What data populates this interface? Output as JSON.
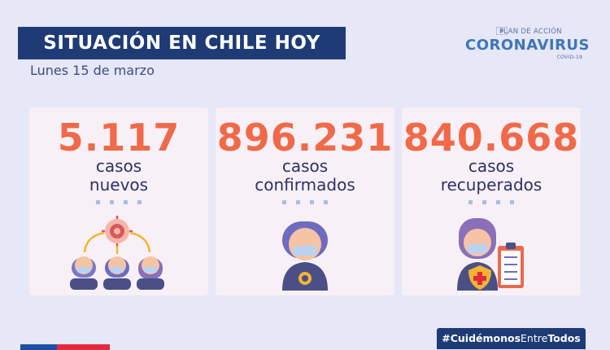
{
  "header": {
    "title": "SITUACIÓN EN CHILE HOY",
    "date": "Lunes 15 de marzo"
  },
  "logo": {
    "plan": "PLAN DE ACCIÓN",
    "name": "CORONAVIRUS",
    "sub": "COVID-19"
  },
  "cards": [
    {
      "value": "5.117",
      "line1": "casos",
      "line2": "nuevos",
      "icon": "contagion-group-icon"
    },
    {
      "value": "896.231",
      "line1": "casos",
      "line2": "confirmados",
      "icon": "masked-person-icon"
    },
    {
      "value": "840.668",
      "line1": "casos",
      "line2": "recuperados",
      "icon": "recovered-person-clipboard-icon"
    }
  ],
  "footer": {
    "hashtag_part1": "#Cuidémonos",
    "hashtag_part2": "Entre",
    "hashtag_part3": "Todos"
  },
  "colors": {
    "background": "#e6e7f7",
    "navy": "#1e3b76",
    "accent_orange": "#f06a49",
    "card": "#f7f0f6"
  }
}
